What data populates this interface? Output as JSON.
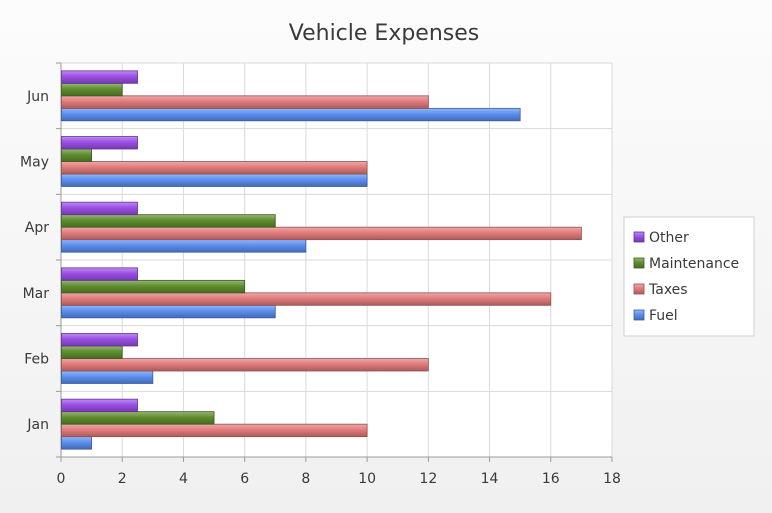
{
  "chart_data": {
    "type": "bar",
    "orientation": "horizontal",
    "title": "Vehicle Expenses",
    "categories": [
      "Jan",
      "Feb",
      "Mar",
      "Apr",
      "May",
      "Jun"
    ],
    "series": [
      {
        "name": "Fuel",
        "color": "#5b8ff0",
        "values": [
          1,
          3,
          7,
          8,
          10,
          15
        ]
      },
      {
        "name": "Taxes",
        "color": "#e27b7b",
        "values": [
          10,
          12,
          16,
          17,
          10,
          12
        ]
      },
      {
        "name": "Maintenance",
        "color": "#5f8e2e",
        "values": [
          5,
          2,
          6,
          7,
          1,
          2
        ]
      },
      {
        "name": "Other",
        "color": "#9b4ee6",
        "values": [
          2.5,
          2.5,
          2.5,
          2.5,
          2.5,
          2.5
        ]
      }
    ],
    "xlim": [
      0,
      18
    ],
    "xticks": [
      0,
      2,
      4,
      6,
      8,
      10,
      12,
      14,
      16,
      18
    ],
    "grid": true,
    "legend": {
      "placement": "right",
      "order": [
        "Other",
        "Maintenance",
        "Taxes",
        "Fuel"
      ]
    }
  }
}
